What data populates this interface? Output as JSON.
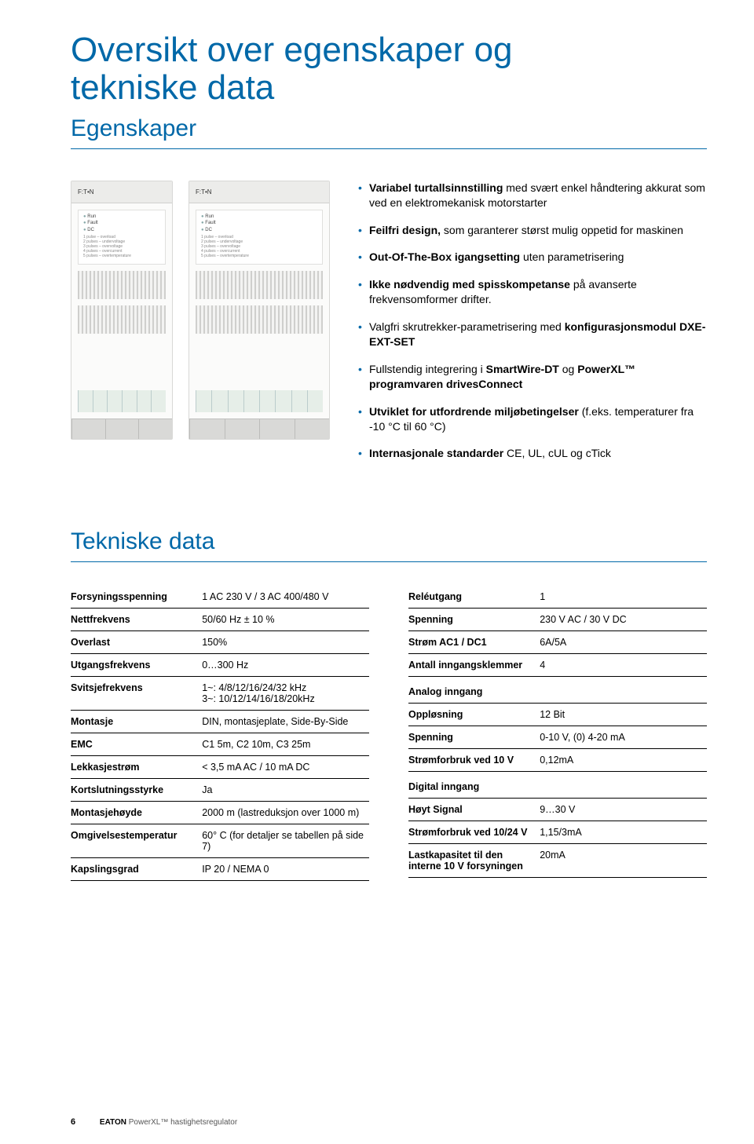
{
  "title": {
    "line1": "Oversikt over egenskaper og",
    "line2": "tekniske data"
  },
  "section1_title": "Egenskaper",
  "bullets": {
    "b1_pre": "Variabel turtallsinnstilling",
    "b1_rest": " med svært enkel håndtering akkurat som ved en elektromekanisk motorstarter",
    "b2_pre": "Feilfri design,",
    "b2_rest": " som garanterer størst mulig oppetid for maskinen",
    "b3_pre": "Out-Of-The-Box igangsetting",
    "b3_rest": " uten parametrisering",
    "b4_pre": "Ikke nødvendig med spisskompetanse",
    "b4_rest": " på avanserte frekvensomformer drifter.",
    "b5_pre": "",
    "b5_mid1": "Valgfri skrutrekker-parametrisering med ",
    "b5_bold": "konfigurasjonsmodul DXE-EXT-SET",
    "b6_mid": "Fullstendig integrering i ",
    "b6_b1": "SmartWire-DT",
    "b6_mid2": " og ",
    "b6_b2": "PowerXL™ programvaren drivesConnect",
    "b7_pre": "Utviklet for utfordrende miljøbetingelser",
    "b7_rest": " (f.eks. temperaturer fra -10 °C til 60 °C)",
    "b8_pre": "Internasjonale standarder",
    "b8_rest": " CE, UL, cUL og cTick"
  },
  "section2_title": "Tekniske data",
  "left_table": [
    {
      "label": "Forsyningsspenning",
      "value": "1 AC 230 V / 3 AC 400/480 V"
    },
    {
      "label": "Nettfrekvens",
      "value": "50/60 Hz ± 10 %"
    },
    {
      "label": "Overlast",
      "value": "150%"
    },
    {
      "label": "Utgangsfrekvens",
      "value": "0…300 Hz"
    },
    {
      "label": "Svitsjefrekvens",
      "value": "1~: 4/8/12/16/24/32 kHz\n3~: 10/12/14/16/18/20kHz"
    },
    {
      "label": "Montasje",
      "value": "DIN, montasjeplate, Side-By-Side"
    },
    {
      "label": "EMC",
      "value": "C1 5m, C2 10m, C3 25m"
    },
    {
      "label": "Lekkasjestrøm",
      "value": "< 3,5 mA AC / 10 mA DC"
    },
    {
      "label": "Kortslutningsstyrke",
      "value": "Ja"
    },
    {
      "label": "Montasjehøyde",
      "value": "2000 m (lastreduksjon over 1000 m)"
    },
    {
      "label": "Omgivelsestemperatur",
      "value": "60° C (for detaljer se tabellen på side 7)"
    },
    {
      "label": "Kapslingsgrad",
      "value": "IP 20 / NEMA 0"
    }
  ],
  "right_table": {
    "rows1": [
      {
        "label": "Reléutgang",
        "value": "1"
      },
      {
        "label": "Spenning",
        "value": "230 V AC / 30 V DC"
      },
      {
        "label": "Strøm AC1 / DC1",
        "value": "6A/5A"
      },
      {
        "label": "Antall inngangsklemmer",
        "value": "4"
      }
    ],
    "head_analog": "Analog inngang",
    "rows2": [
      {
        "label": "Oppløsning",
        "value": "12 Bit"
      },
      {
        "label": "Spenning",
        "value": "0-10 V, (0) 4-20 mA"
      },
      {
        "label": "Strømforbruk ved 10 V",
        "value": "0,12mA"
      }
    ],
    "head_digital": "Digital inngang",
    "rows3": [
      {
        "label": "Høyt Signal",
        "value": "9…30 V"
      },
      {
        "label": "Strømforbruk ved 10/24 V",
        "value": "1,15/3mA"
      },
      {
        "label": "Lastkapasitet til den interne 10 V forsyningen",
        "value": "20mA"
      }
    ]
  },
  "footer": {
    "page": "6",
    "brand": "EATON",
    "product": " PowerXL™ hastighetsregulator"
  },
  "colors": {
    "accent": "#0068a8"
  }
}
